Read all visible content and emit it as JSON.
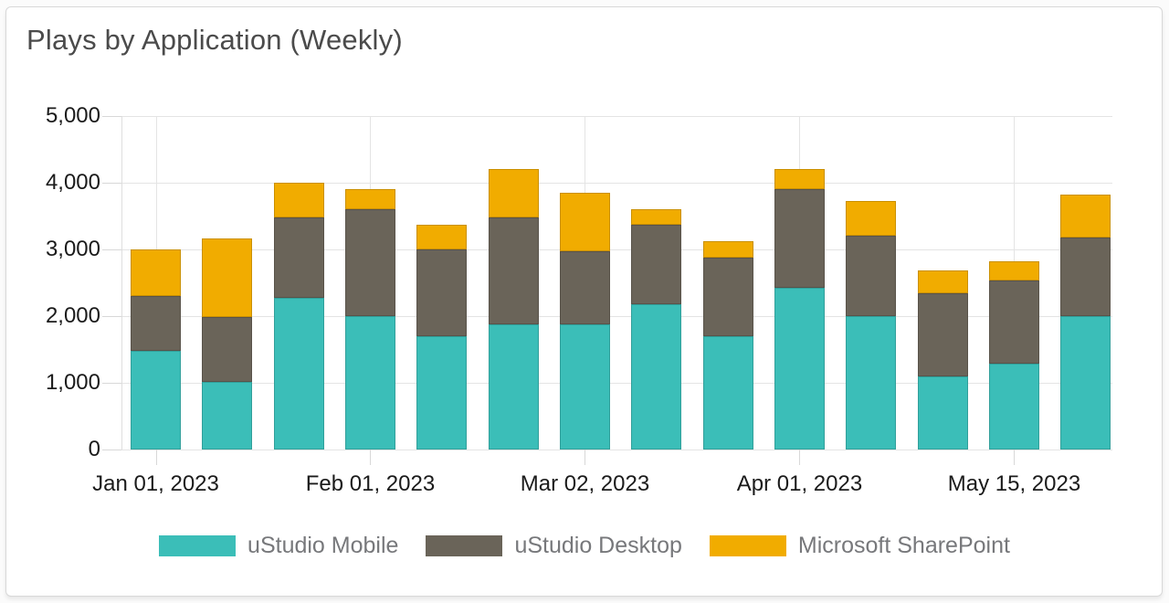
{
  "card": {
    "title": "Plays by Application (Weekly)"
  },
  "axes": {
    "y_tick_labels": [
      "0",
      "1,000",
      "2,000",
      "3,000",
      "4,000",
      "5,000"
    ],
    "x_tick_labels": [
      "Jan 01, 2023",
      "Feb 01, 2023",
      "Mar 02, 2023",
      "Apr 01, 2023",
      "May 15, 2023"
    ]
  },
  "legend": {
    "items": [
      {
        "label": "uStudio Mobile",
        "color": "#3bbeb8"
      },
      {
        "label": "uStudio Desktop",
        "color": "#6a6459"
      },
      {
        "label": "Microsoft SharePoint",
        "color": "#f1ac00"
      }
    ]
  },
  "chart_data": {
    "type": "bar",
    "stacked": true,
    "title": "Plays by Application (Weekly)",
    "xlabel": "",
    "ylabel": "",
    "ylim": [
      0,
      5000
    ],
    "grid": true,
    "legend_position": "bottom",
    "n_bars": 14,
    "x_tick_labels": [
      "Jan 01, 2023",
      "Feb 01, 2023",
      "Mar 02, 2023",
      "Apr 01, 2023",
      "May 15, 2023"
    ],
    "x_tick_bar_indices": [
      0,
      3,
      6,
      9,
      12
    ],
    "y_tick_values": [
      0,
      1000,
      2000,
      3000,
      4000,
      5000
    ],
    "series": [
      {
        "name": "uStudio Mobile",
        "color": "#3bbeb8",
        "values": [
          1480,
          1020,
          2270,
          2000,
          1700,
          1870,
          1870,
          2180,
          1700,
          2430,
          2000,
          1090,
          1290,
          2000
        ]
      },
      {
        "name": "uStudio Desktop",
        "color": "#6a6459",
        "values": [
          820,
          960,
          1210,
          1600,
          1300,
          1610,
          1100,
          1190,
          1170,
          1470,
          1200,
          1250,
          1240,
          1180
        ]
      },
      {
        "name": "Microsoft SharePoint",
        "color": "#f1ac00",
        "values": [
          700,
          1190,
          520,
          300,
          370,
          720,
          880,
          230,
          250,
          300,
          530,
          340,
          290,
          640
        ]
      }
    ],
    "stack_totals": [
      3000,
      3170,
      4000,
      3900,
      3370,
      4200,
      3850,
      3600,
      3120,
      4200,
      3730,
      2680,
      2820,
      3820
    ]
  }
}
